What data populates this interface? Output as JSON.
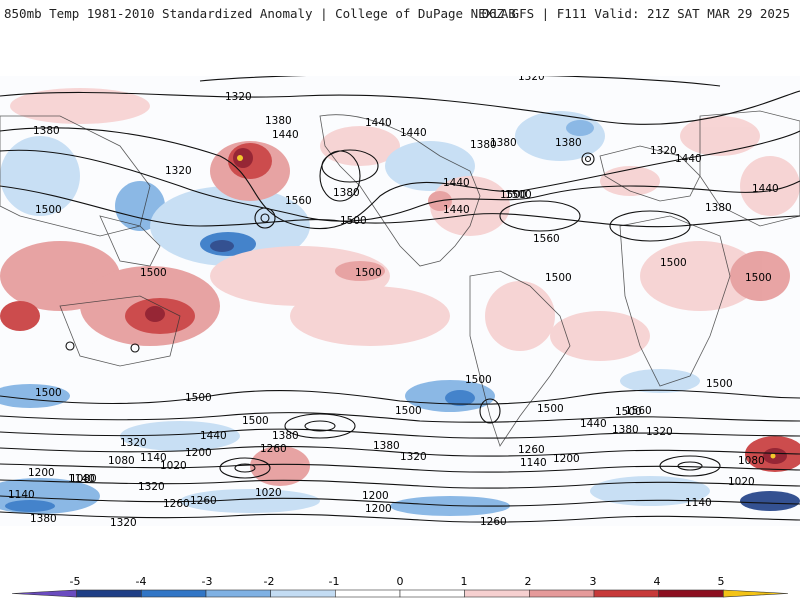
{
  "header": {
    "left_title": "850mb Temp 1981-2010 Standardized Anomaly | College of DuPage NEXLAB",
    "right_title": "06Z GFS | F111 Valid: 21Z SAT MAR 29 2025"
  },
  "map": {
    "projection": "global",
    "contour_labels": [
      "1320",
      "1320",
      "1380",
      "1380",
      "1440",
      "1440",
      "1380",
      "1440",
      "1380",
      "1320",
      "1440",
      "1320",
      "1380",
      "1440",
      "1500",
      "1500",
      "1380",
      "1560",
      "1500",
      "1440",
      "1500",
      "1560",
      "1380",
      "1440",
      "1500",
      "1500",
      "1500",
      "1500",
      "1500",
      "1500",
      "1500",
      "1500",
      "1500",
      "1500",
      "1500",
      "1500",
      "1500",
      "1440",
      "1440",
      "1380",
      "1560",
      "1320",
      "1380",
      "1260",
      "1200",
      "1140",
      "1080",
      "1020",
      "1320",
      "1380",
      "1260",
      "1320",
      "1140",
      "1200",
      "1080",
      "1140",
      "1320",
      "1260",
      "1200",
      "1140",
      "1020",
      "1200",
      "1260",
      "1200",
      "1080",
      "1140",
      "1020",
      "1380",
      "1320",
      "1260"
    ],
    "colors": {
      "strong_positive": "#8b0a1e",
      "positive": "#d8303a",
      "weak_positive": "#f2b2b2",
      "weak_negative": "#b7d3ee",
      "negative": "#3b7fd0",
      "strong_negative": "#1d3d8f"
    }
  },
  "colorbar": {
    "ticks": [
      "-5",
      "-4",
      "-3",
      "-2",
      "-1",
      "0",
      "1",
      "2",
      "3",
      "4",
      "5"
    ],
    "colors": [
      "#6a4bbf",
      "#1f3f86",
      "#3176c6",
      "#7fb1e3",
      "#c3dcf3",
      "#ffffff",
      "#ffffff",
      "#f6d0d0",
      "#e59a9a",
      "#c73a3a",
      "#8c0f20",
      "#f3c316"
    ]
  }
}
